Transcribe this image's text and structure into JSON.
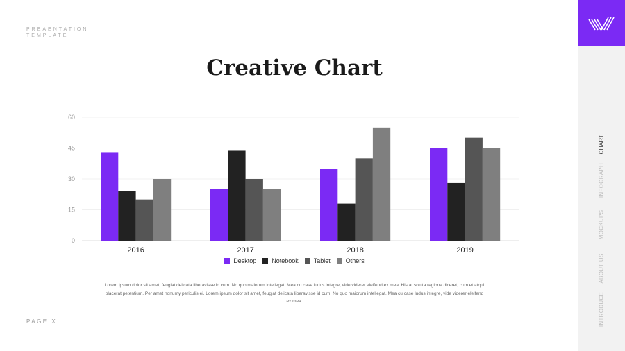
{
  "brand": {
    "line1": "PREAENTATION",
    "line2": "TEMPLATE"
  },
  "page_label": "PAGE X",
  "title": "Creative Chart",
  "body_text": "Lorem ipsum dolor sit amet, feugiat delicata liberavisse id cum. No quo maiorum intellegat. Mea cu case ludus integre, vide viderer eleifend ex mea. His at soluta regione diceret, cum et atqui placerat petentium. Per amet nonumy periculis ei. Lorem ipsum dolor sit amet, feugiat delicata liberavisse id cum. No quo maiorum intellegat. Mea cu case ludus integre, vide viderer eleifend ex mea.",
  "nav": [
    {
      "label": "CHART",
      "active": true
    },
    {
      "label": "INFOGRAPH"
    },
    {
      "label": "MOCKUPS"
    },
    {
      "label": "ABOUT US"
    },
    {
      "label": "INTRODUCE"
    }
  ],
  "colors": {
    "accent": "#7b2af4",
    "Desktop": "#7b2af4",
    "Notebook": "#222222",
    "Tablet": "#555555",
    "Others": "#7f7f7f"
  },
  "chart_data": {
    "type": "bar",
    "categories": [
      "2016",
      "2017",
      "2018",
      "2019"
    ],
    "series": [
      {
        "name": "Desktop",
        "values": [
          43,
          25,
          35,
          45
        ]
      },
      {
        "name": "Notebook",
        "values": [
          24,
          44,
          18,
          28
        ]
      },
      {
        "name": "Tablet",
        "values": [
          20,
          30,
          40,
          50
        ]
      },
      {
        "name": "Others",
        "values": [
          30,
          25,
          55,
          45
        ]
      }
    ],
    "yticks": [
      "0",
      "15",
      "30",
      "45",
      "60"
    ],
    "ylim": [
      0,
      60
    ],
    "grid": true,
    "legend": "bottom"
  }
}
